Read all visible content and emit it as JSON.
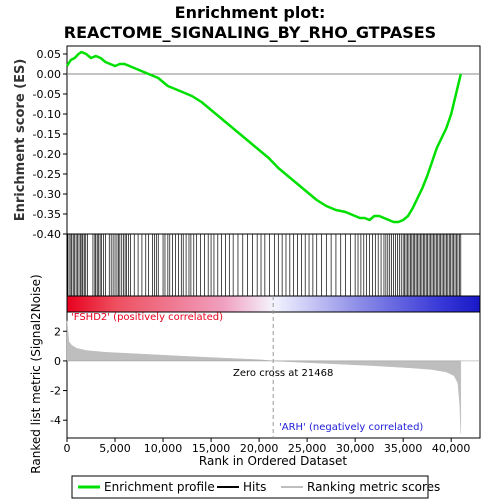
{
  "chart_data": {
    "type": "line",
    "title_line1": "Enrichment plot:",
    "title_line2": "REACTOME_SIGNALING_BY_RHO_GTPASES",
    "xlabel": "Rank in Ordered Dataset",
    "es_ylabel": "Enrichment score (ES)",
    "metric_ylabel": "Ranked list metric (Signal2Noise)",
    "xlim": [
      0,
      43000
    ],
    "es_ylim": [
      -0.4,
      0.07
    ],
    "metric_ylim": [
      -5.2,
      3.3
    ],
    "x_ticks": [
      0,
      5000,
      10000,
      15000,
      20000,
      25000,
      30000,
      35000,
      40000
    ],
    "x_tick_labels": [
      "0",
      "5,000",
      "10,000",
      "15,000",
      "20,000",
      "25,000",
      "30,000",
      "35,000",
      "40,000"
    ],
    "es_ticks": [
      0.05,
      0.0,
      -0.05,
      -0.1,
      -0.15,
      -0.2,
      -0.25,
      -0.3,
      -0.35,
      -0.4
    ],
    "es_tick_labels": [
      "0.05",
      "0.00",
      "-0.05",
      "-0.10",
      "-0.15",
      "-0.20",
      "-0.25",
      "-0.30",
      "-0.35",
      "-0.40"
    ],
    "metric_ticks": [
      2,
      0,
      -2,
      -4
    ],
    "metric_tick_labels": [
      "2",
      "0",
      "-2",
      "-4"
    ],
    "enrichment_profile": {
      "name": "Enrichment profile",
      "color": "#00e000",
      "x": [
        0,
        400,
        800,
        1200,
        1500,
        2000,
        2500,
        3000,
        3500,
        4000,
        4500,
        5000,
        5500,
        6000,
        6500,
        7000,
        7500,
        8000,
        8500,
        9000,
        9500,
        10000,
        10500,
        11000,
        11500,
        12000,
        12500,
        13000,
        14000,
        15000,
        16000,
        17000,
        18000,
        19000,
        20000,
        21000,
        22000,
        23000,
        24000,
        25000,
        26000,
        27000,
        28000,
        29000,
        30000,
        30500,
        31000,
        31500,
        32000,
        32500,
        33000,
        33500,
        34000,
        34500,
        35000,
        35500,
        36000,
        36500,
        37000,
        37500,
        38000,
        38500,
        39000,
        39500,
        40000,
        40500,
        41000
      ],
      "y": [
        0.02,
        0.035,
        0.04,
        0.05,
        0.055,
        0.05,
        0.04,
        0.045,
        0.04,
        0.03,
        0.025,
        0.02,
        0.025,
        0.025,
        0.02,
        0.015,
        0.01,
        0.005,
        0.0,
        -0.005,
        -0.01,
        -0.02,
        -0.03,
        -0.035,
        -0.04,
        -0.045,
        -0.05,
        -0.055,
        -0.07,
        -0.09,
        -0.11,
        -0.13,
        -0.15,
        -0.17,
        -0.19,
        -0.21,
        -0.235,
        -0.255,
        -0.275,
        -0.295,
        -0.315,
        -0.33,
        -0.34,
        -0.345,
        -0.355,
        -0.36,
        -0.36,
        -0.365,
        -0.355,
        -0.355,
        -0.36,
        -0.365,
        -0.37,
        -0.37,
        -0.365,
        -0.355,
        -0.335,
        -0.31,
        -0.285,
        -0.255,
        -0.22,
        -0.185,
        -0.16,
        -0.135,
        -0.1,
        -0.05,
        0.0
      ]
    },
    "hits_legend": "Hits",
    "hits": [
      80,
      220,
      400,
      500,
      650,
      800,
      950,
      1100,
      1250,
      1400,
      1550,
      1650,
      1800,
      1950,
      2150,
      2700,
      2900,
      3000,
      3150,
      3300,
      3450,
      3600,
      3800,
      4000,
      4400,
      4600,
      4800,
      5000,
      5200,
      5350,
      5500,
      5700,
      5900,
      6050,
      6200,
      6400,
      6600,
      7000,
      7400,
      7800,
      8200,
      8500,
      8900,
      9100,
      9300,
      9500,
      10000,
      10200,
      10500,
      10700,
      11000,
      11300,
      11600,
      11900,
      12100,
      12400,
      12700,
      12900,
      13200,
      13500,
      13900,
      14300,
      14700,
      15000,
      15300,
      15700,
      16100,
      16500,
      16900,
      17300,
      17800,
      18300,
      18800,
      19300,
      19800,
      20200,
      20600,
      21100,
      21600,
      22000,
      22400,
      22800,
      23200,
      23600,
      24000,
      24400,
      24800,
      25200,
      25600,
      26000,
      26500,
      27000,
      27500,
      28000,
      28500,
      29000,
      29500,
      30000,
      30300,
      30600,
      30900,
      31200,
      31500,
      31800,
      32100,
      32400,
      32700,
      33000,
      33200,
      33400,
      33600,
      33800,
      34000,
      34200,
      34400,
      34600,
      34800,
      35000,
      35150,
      35300,
      35450,
      35600,
      35750,
      35900,
      36050,
      36200,
      36350,
      36500,
      36650,
      36800,
      36950,
      37100,
      37250,
      37400,
      37550,
      37700,
      37850,
      38000,
      38150,
      38300,
      38450,
      38600,
      38750,
      38900,
      39050,
      39200,
      39350,
      39500,
      39650,
      39800,
      39950,
      40100,
      40250,
      40400,
      40550,
      40700,
      40850,
      41000
    ],
    "ranking_legend": "Ranking metric scores",
    "ranking_metric": {
      "color": "#bebebe",
      "x": [
        0,
        200,
        500,
        1000,
        2000,
        4000,
        8000,
        12000,
        16000,
        20000,
        21468,
        24000,
        28000,
        32000,
        36000,
        38000,
        39500,
        40300,
        40700,
        40900,
        41000
      ],
      "y": [
        2.7,
        1.3,
        1.05,
        0.85,
        0.7,
        0.58,
        0.45,
        0.32,
        0.2,
        0.08,
        0.0,
        -0.08,
        -0.2,
        -0.32,
        -0.48,
        -0.58,
        -0.75,
        -1.0,
        -1.5,
        -3.0,
        -4.9
      ]
    },
    "zero_cross_label": "Zero cross at 21468",
    "zero_cross_x": 21468,
    "positive_label": "'FSHD2' (positively correlated)",
    "negative_label": "'ARH' (negatively correlated)",
    "positive_color": "#e8001e",
    "negative_color": "#2020d8"
  }
}
